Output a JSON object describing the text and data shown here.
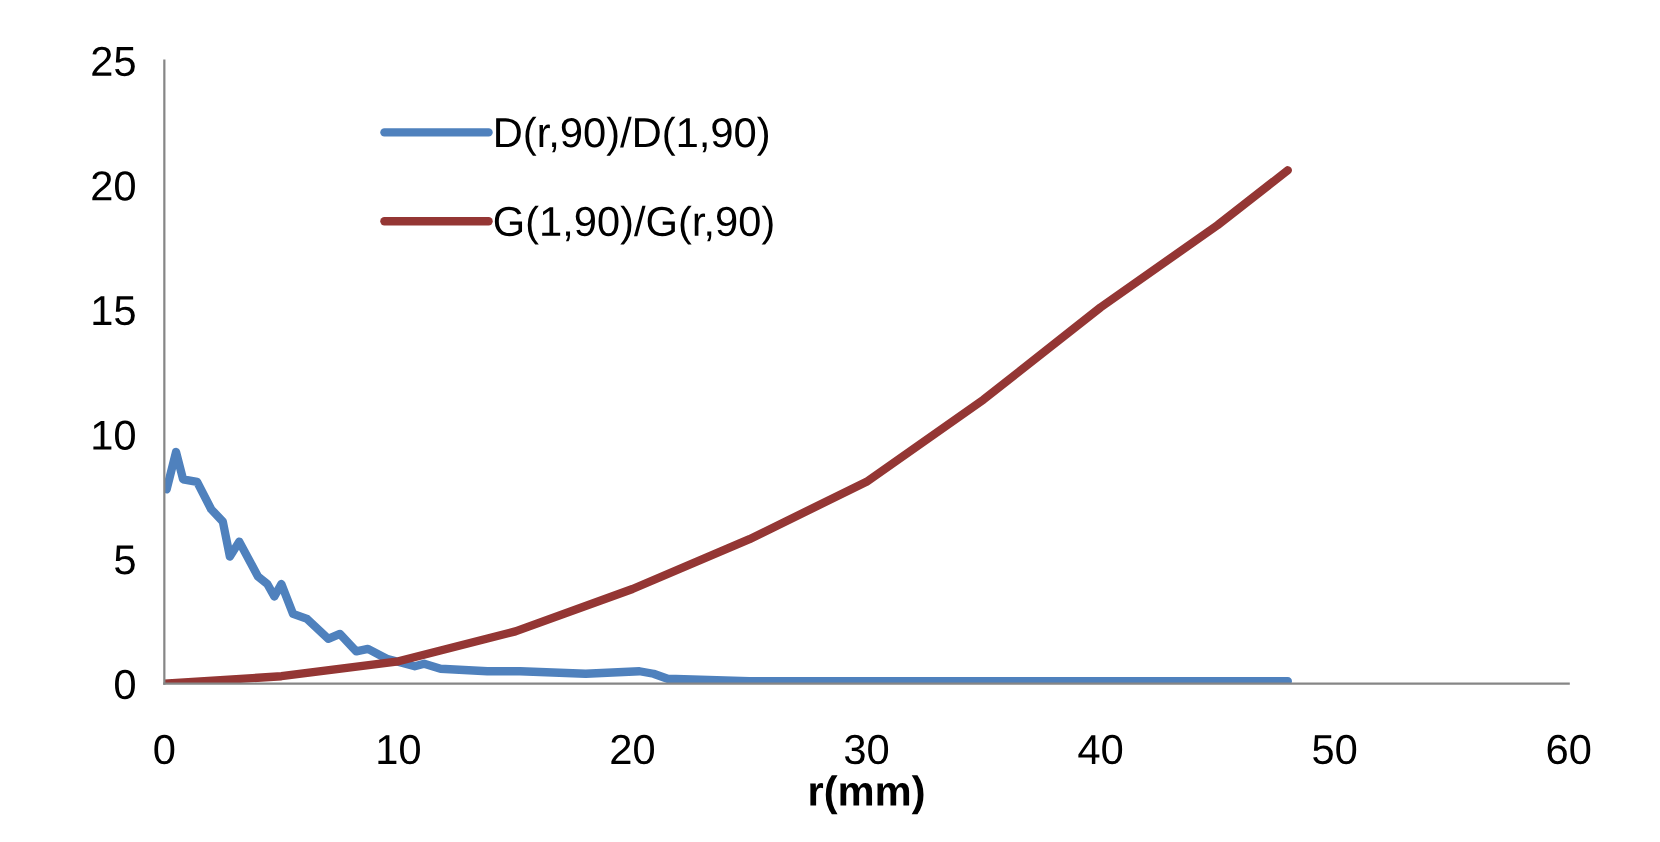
{
  "chart_data": {
    "type": "line",
    "xlabel": "r(mm)",
    "xlim": [
      0,
      60
    ],
    "xticks": [
      0,
      10,
      20,
      30,
      40,
      50,
      60
    ],
    "ylim": [
      0,
      25
    ],
    "yticks": [
      0,
      5,
      10,
      15,
      20,
      25
    ],
    "grid": false,
    "legend": "top left",
    "marker": "none",
    "line_style": "solid",
    "series": [
      {
        "name": "D(r,90)/D(1,90)",
        "color": "#4f81bd",
        "x": [
          0.1,
          0.5,
          0.8,
          1.4,
          2.0,
          2.5,
          2.8,
          3.2,
          4.0,
          4.4,
          4.7,
          5.0,
          5.5,
          6.1,
          7.0,
          7.5,
          8.2,
          8.7,
          9.5,
          10.7,
          11.1,
          11.8,
          13.8,
          15.2,
          18.0,
          20.3,
          20.9,
          21.5,
          25,
          30,
          35,
          40,
          45,
          48
        ],
        "values": [
          7.8,
          9.3,
          8.2,
          8.1,
          7.0,
          6.5,
          5.1,
          5.7,
          4.3,
          4.0,
          3.5,
          4.0,
          2.8,
          2.6,
          1.8,
          2.0,
          1.3,
          1.4,
          1.0,
          0.7,
          0.8,
          0.6,
          0.5,
          0.5,
          0.4,
          0.5,
          0.4,
          0.2,
          0.1,
          0.1,
          0.1,
          0.1,
          0.1,
          0.1
        ]
      },
      {
        "name": "G(1,90)/G(r,90)",
        "color": "#943634",
        "x": [
          0,
          5,
          10,
          15,
          20,
          25,
          30,
          35,
          40,
          45,
          48
        ],
        "values": [
          0,
          0.3,
          0.9,
          2.1,
          3.8,
          5.8,
          8.1,
          11.4,
          15.1,
          18.4,
          20.6
        ]
      }
    ]
  }
}
